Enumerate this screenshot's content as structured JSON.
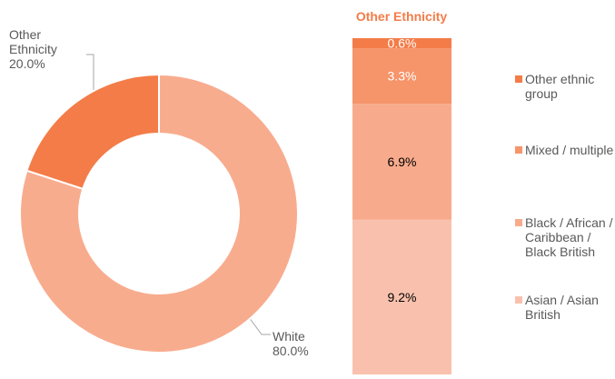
{
  "chart_data": [
    {
      "type": "donut",
      "categories": [
        "White",
        "Other Ethnicity"
      ],
      "values": [
        80.0,
        20.0
      ],
      "value_labels": [
        "80.0%",
        "20.0%"
      ],
      "colors": [
        "#f8ac8e",
        "#f47c48"
      ]
    },
    {
      "type": "stacked_bar",
      "title": "Other Ethnicity",
      "series": [
        {
          "name": "Asian / Asian British",
          "color": "#f9c1ad",
          "label_color": "#000000",
          "values": [
            9.2
          ],
          "value_labels": [
            "9.2%"
          ]
        },
        {
          "name": "Black / African / Caribbean / Black British",
          "color": "#f8ab8c",
          "label_color": "#000000",
          "values": [
            6.9
          ],
          "value_labels": [
            "6.9%"
          ]
        },
        {
          "name": "Mixed / multiple",
          "color": "#f6946a",
          "label_color": "#ffffff",
          "values": [
            3.3
          ],
          "value_labels": [
            "3.3%"
          ]
        },
        {
          "name": "Other ethnic group",
          "color": "#f47c48",
          "label_color": "#ffffff",
          "values": [
            0.6
          ],
          "value_labels": [
            "0.6%"
          ]
        }
      ]
    }
  ]
}
